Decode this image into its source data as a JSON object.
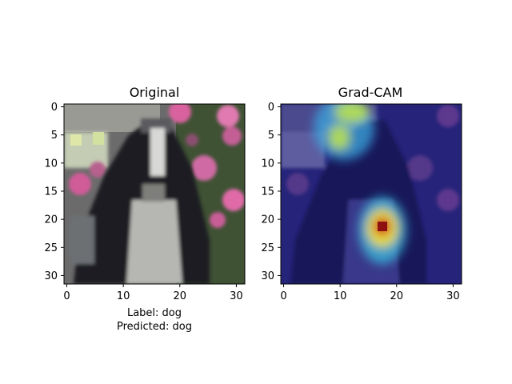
{
  "panels": [
    {
      "title": "Original",
      "caption_lines": [
        "Label: dog",
        "Predicted: dog"
      ],
      "x_ticks": [
        "0",
        "10",
        "20",
        "30"
      ],
      "y_ticks": [
        "0",
        "5",
        "10",
        "15",
        "20",
        "25",
        "30"
      ]
    },
    {
      "title": "Grad-CAM",
      "caption_lines": [],
      "x_ticks": [
        "0",
        "10",
        "20",
        "30"
      ],
      "y_ticks": [
        "0",
        "5",
        "10",
        "15",
        "20",
        "25",
        "30"
      ]
    }
  ],
  "image_grid": {
    "width": 32,
    "height": 32
  },
  "colors": {
    "flower_pink": "#e06aa8",
    "foliage_green": "#3f5a34",
    "dog_black": "#1c1c20",
    "dog_white": "#b9bab6",
    "light_bg": "#c8d0c0",
    "heat_low": "#000080",
    "heat_mid": "#00c8ff",
    "heat_high": "#ffff00",
    "heat_peak": "#b01818"
  }
}
